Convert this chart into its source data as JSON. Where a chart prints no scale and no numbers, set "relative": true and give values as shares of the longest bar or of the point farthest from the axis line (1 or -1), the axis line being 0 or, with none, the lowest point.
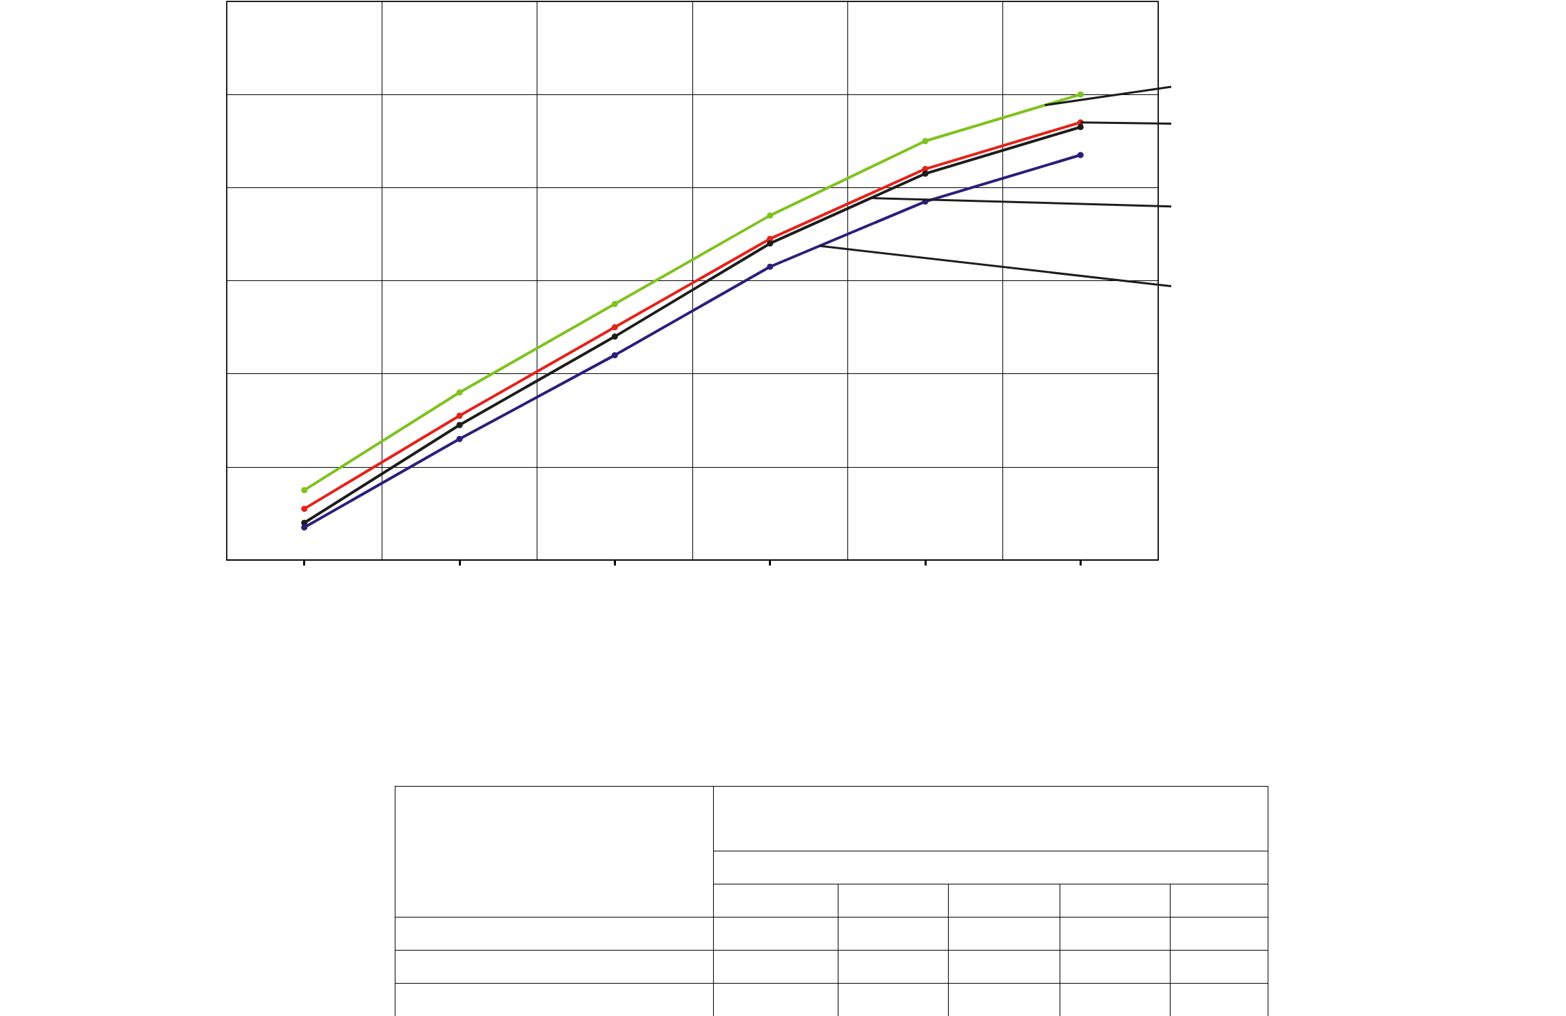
{
  "chart_data": {
    "type": "line",
    "relative": true,
    "grid": true,
    "marker": "circle",
    "categories": [
      null,
      null,
      null,
      null,
      null,
      null
    ],
    "series": [
      {
        "color": "#7fc21f",
        "values": [
          0.15,
          0.36,
          0.55,
          0.74,
          0.9,
          1
        ]
      },
      {
        "color": "#e3231b",
        "values": [
          0.11,
          0.31,
          0.5,
          0.69,
          0.84,
          0.94
        ]
      },
      {
        "color": "#1d1d1b",
        "values": [
          0.08,
          0.29,
          0.48,
          0.68,
          0.83,
          0.93
        ]
      },
      {
        "color": "#2b1f7a",
        "values": [
          0.07,
          0.26,
          0.44,
          0.63,
          0.77,
          0.87
        ]
      }
    ]
  }
}
